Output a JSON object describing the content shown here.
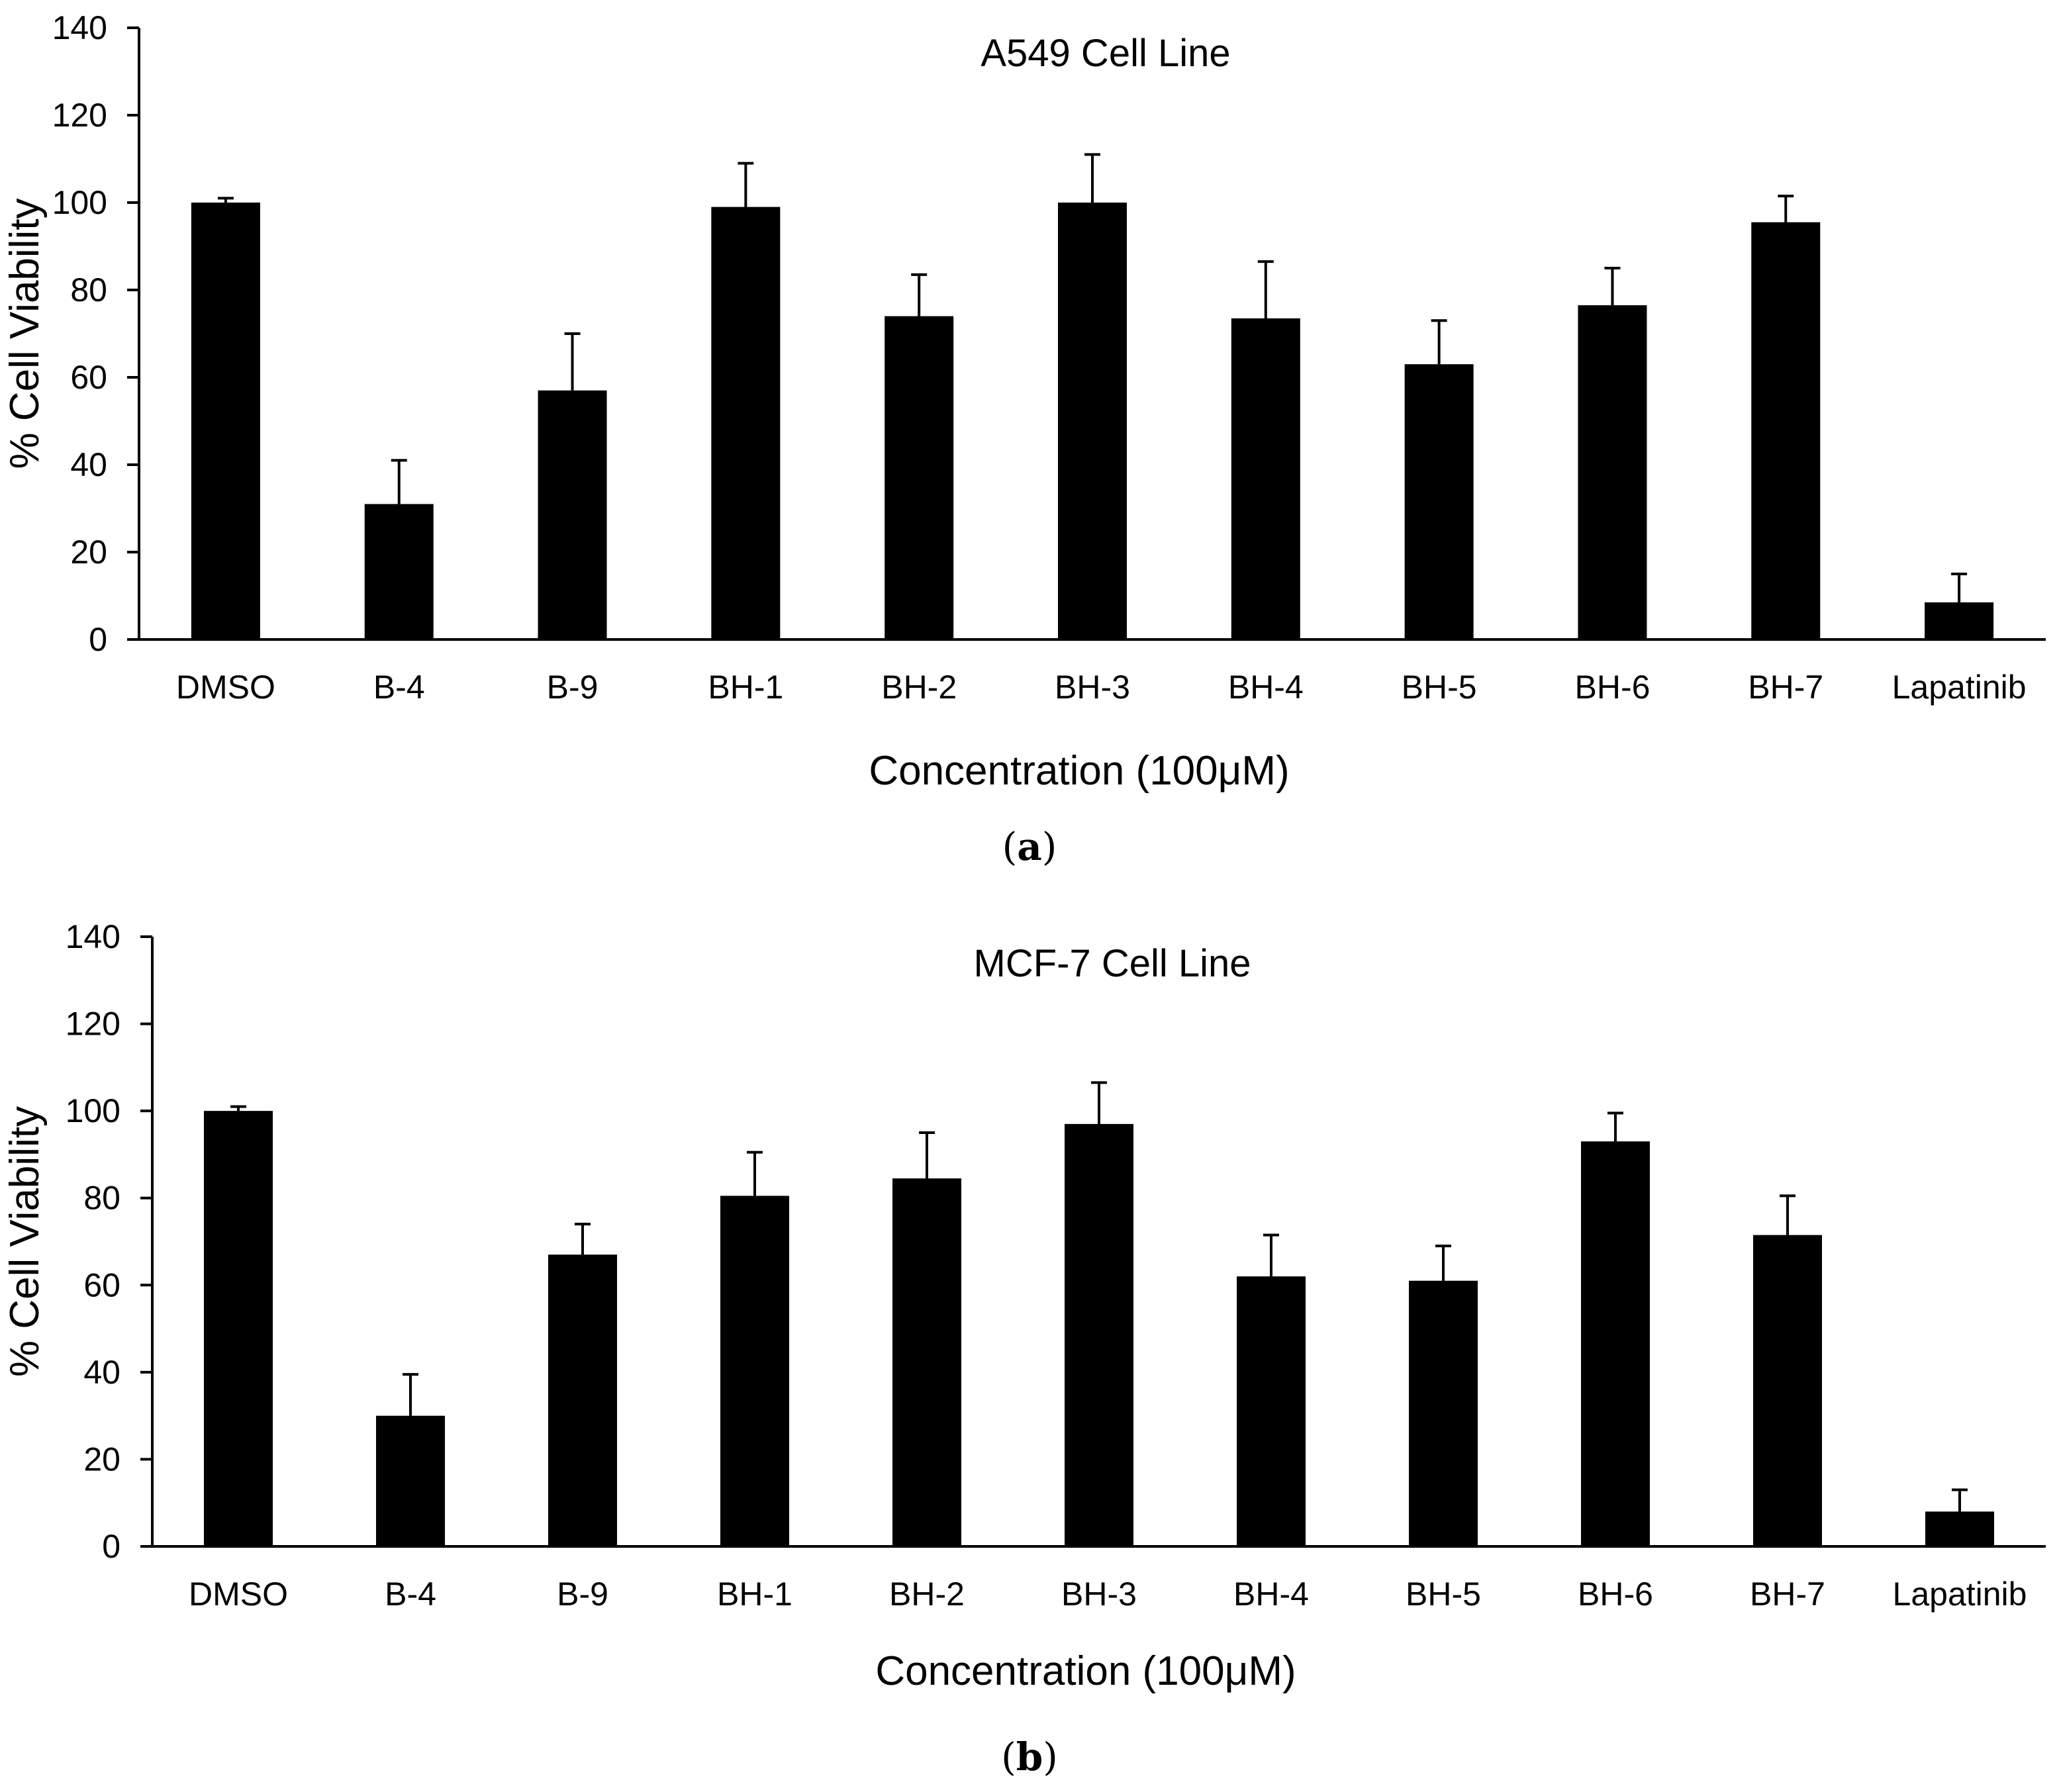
{
  "chart_data": [
    {
      "type": "bar",
      "title": "A549 Cell Line",
      "xlabel": "Concentration (100μM)",
      "ylabel": "% Cell Viability",
      "categories": [
        "DMSO",
        "B-4",
        "B-9",
        "BH-1",
        "BH-2",
        "BH-3",
        "BH-4",
        "BH-5",
        "BH-6",
        "BH-7",
        "Lapatinib"
      ],
      "values": [
        100,
        31,
        57,
        99,
        74,
        100,
        73.5,
        63,
        76.5,
        95.5,
        8.5
      ],
      "errors": [
        1,
        10,
        13,
        10,
        9.5,
        11,
        13,
        10,
        8.5,
        6,
        6.5
      ],
      "ylim": [
        0,
        140
      ],
      "yticks": [
        0,
        20,
        40,
        60,
        80,
        100,
        120,
        140
      ],
      "panel_label": "(a)",
      "panel_letter": "a"
    },
    {
      "type": "bar",
      "title": "MCF-7 Cell Line",
      "xlabel": "Concentration (100μM)",
      "ylabel": "% Cell Viability",
      "categories": [
        "DMSO",
        "B-4",
        "B-9",
        "BH-1",
        "BH-2",
        "BH-3",
        "BH-4",
        "BH-5",
        "BH-6",
        "BH-7",
        "Lapatinib"
      ],
      "values": [
        100,
        30,
        67,
        80.5,
        84.5,
        97,
        62,
        61,
        93,
        71.5,
        8
      ],
      "errors": [
        1,
        9.5,
        7,
        10,
        10.5,
        9.5,
        9.5,
        8,
        6.5,
        9,
        5
      ],
      "ylim": [
        0,
        140
      ],
      "yticks": [
        0,
        20,
        40,
        60,
        80,
        100,
        120,
        140
      ],
      "panel_label": "(b)",
      "panel_letter": "b"
    }
  ],
  "style": {
    "bar_color": "#000000",
    "axis_color": "#000000",
    "background": "#ffffff"
  }
}
